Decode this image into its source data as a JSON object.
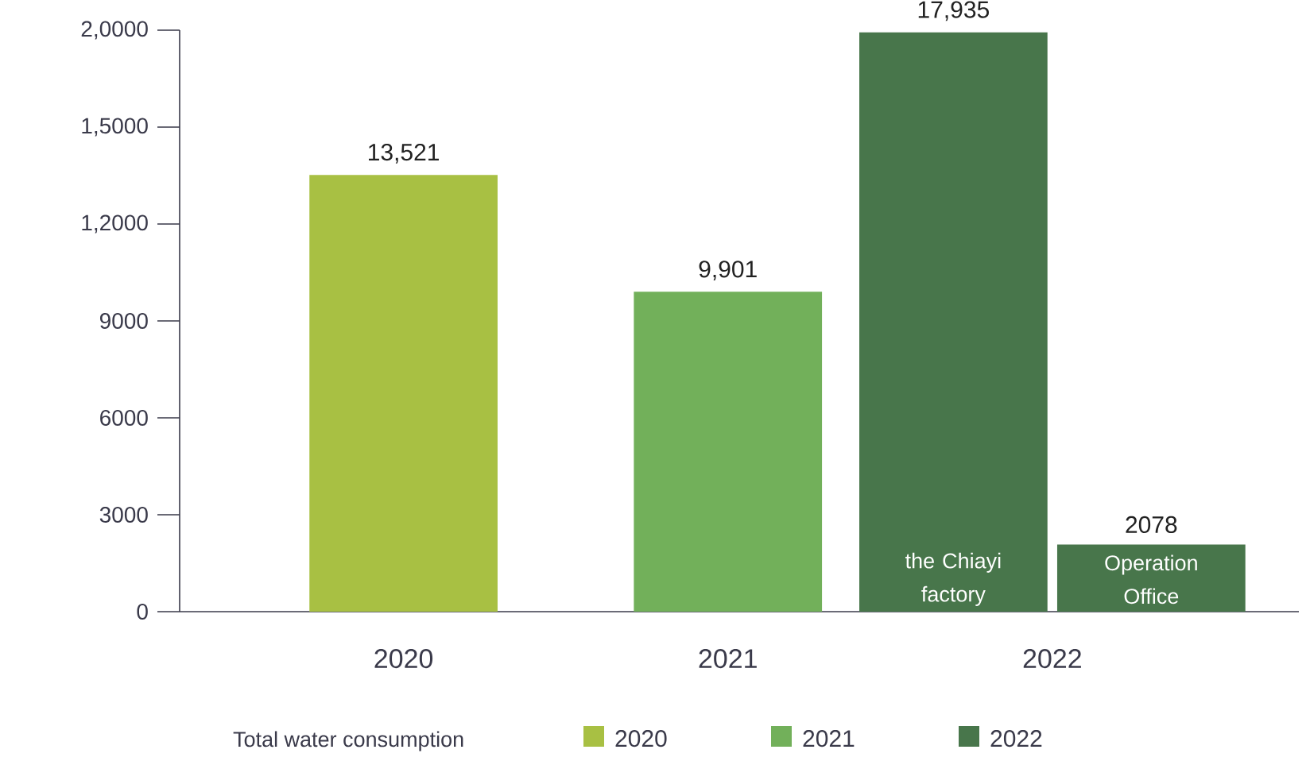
{
  "chart_data": {
    "type": "bar",
    "legend_title": "Total water consumption",
    "legend": "bottom",
    "categories": [
      "2020",
      "2021",
      "2022"
    ],
    "series": [
      {
        "name": "2020",
        "color": "#a8c043",
        "values": [
          13521,
          null,
          null
        ],
        "value_labels": [
          "13,521",
          null,
          null
        ]
      },
      {
        "name": "2021",
        "color": "#72b05a",
        "values": [
          null,
          9901,
          null
        ],
        "value_labels": [
          null,
          "9,901",
          null
        ]
      },
      {
        "name": "2022",
        "color": "#48764b",
        "values": [
          null,
          null,
          17935
        ],
        "value_labels": [
          null,
          null,
          "17,935"
        ]
      },
      {
        "color": "#48764b",
        "values": [
          null,
          null,
          2078
        ],
        "value_labels": [
          null,
          null,
          "2078"
        ]
      }
    ],
    "annotations": [
      {
        "text": "the Chiayi factory",
        "x": "2022",
        "y": 1000
      },
      {
        "text": "Operation Office",
        "x": "2022",
        "y": 1000
      }
    ],
    "ylim": [
      0,
      18000
    ],
    "yticks": [
      0,
      3000,
      6000,
      9000,
      {
        "value": 12000,
        "label": "1,2000"
      },
      {
        "value": 15000,
        "label": "1,5000"
      },
      {
        "value": 18000,
        "label": "2,0000"
      }
    ]
  }
}
